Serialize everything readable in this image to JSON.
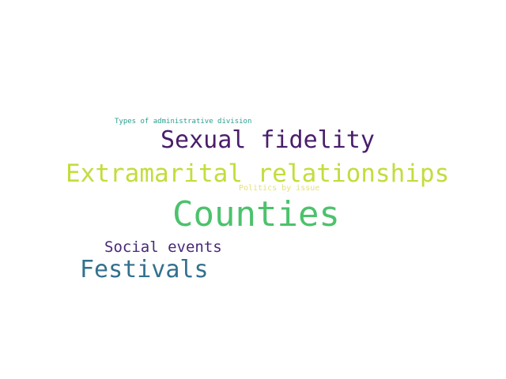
{
  "wordcloud": {
    "words": [
      {
        "text": "Types of administrative division",
        "color": "#2a9d8e"
      },
      {
        "text": "Sexual fidelity",
        "color": "#4a1d6b"
      },
      {
        "text": "Extramarital relationships",
        "color": "#c4dc3c"
      },
      {
        "text": "Politics by issue",
        "color": "#e7e07a"
      },
      {
        "text": "Counties",
        "color": "#4cc26c"
      },
      {
        "text": "Social events",
        "color": "#482877"
      },
      {
        "text": "Festivals",
        "color": "#33708e"
      }
    ]
  }
}
